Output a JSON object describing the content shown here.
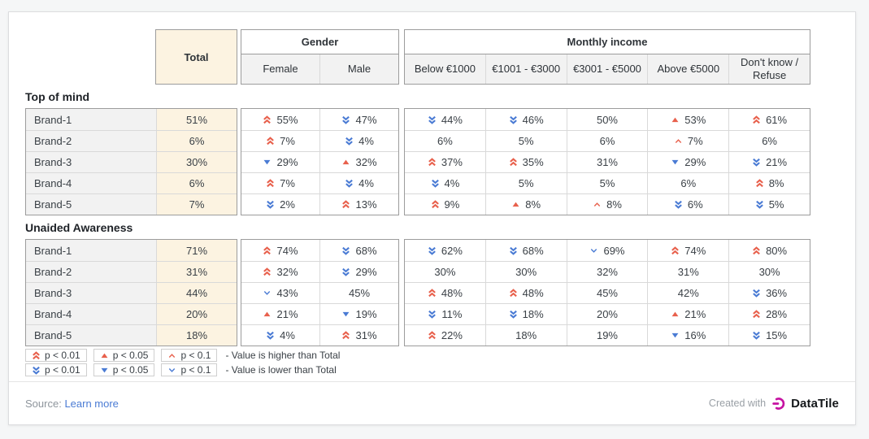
{
  "chart_data": {
    "type": "table",
    "header": {
      "total_label": "Total",
      "groups": [
        {
          "label": "Gender",
          "columns": [
            "Female",
            "Male"
          ]
        },
        {
          "label": "Monthly income",
          "columns": [
            "Below €1000",
            "€1001 - €3000",
            "€3001 - €5000",
            "Above €5000",
            "Don't know / Refuse"
          ]
        }
      ]
    },
    "sections": [
      {
        "title": "Top of mind",
        "rows": [
          {
            "label": "Brand-1",
            "total": "51%",
            "gender": [
              {
                "v": "55%",
                "sig": "up2"
              },
              {
                "v": "47%",
                "sig": "down2"
              }
            ],
            "income": [
              {
                "v": "44%",
                "sig": "down2"
              },
              {
                "v": "46%",
                "sig": "down2"
              },
              {
                "v": "50%",
                "sig": null
              },
              {
                "v": "53%",
                "sig": "up1"
              },
              {
                "v": "61%",
                "sig": "up2"
              }
            ]
          },
          {
            "label": "Brand-2",
            "total": "6%",
            "gender": [
              {
                "v": "7%",
                "sig": "up2"
              },
              {
                "v": "4%",
                "sig": "down2"
              }
            ],
            "income": [
              {
                "v": "6%",
                "sig": null
              },
              {
                "v": "5%",
                "sig": null
              },
              {
                "v": "6%",
                "sig": null
              },
              {
                "v": "7%",
                "sig": "up0"
              },
              {
                "v": "6%",
                "sig": null
              }
            ]
          },
          {
            "label": "Brand-3",
            "total": "30%",
            "gender": [
              {
                "v": "29%",
                "sig": "down1"
              },
              {
                "v": "32%",
                "sig": "up1"
              }
            ],
            "income": [
              {
                "v": "37%",
                "sig": "up2"
              },
              {
                "v": "35%",
                "sig": "up2"
              },
              {
                "v": "31%",
                "sig": null
              },
              {
                "v": "29%",
                "sig": "down1"
              },
              {
                "v": "21%",
                "sig": "down2"
              }
            ]
          },
          {
            "label": "Brand-4",
            "total": "6%",
            "gender": [
              {
                "v": "7%",
                "sig": "up2"
              },
              {
                "v": "4%",
                "sig": "down2"
              }
            ],
            "income": [
              {
                "v": "4%",
                "sig": "down2"
              },
              {
                "v": "5%",
                "sig": null
              },
              {
                "v": "5%",
                "sig": null
              },
              {
                "v": "6%",
                "sig": null
              },
              {
                "v": "8%",
                "sig": "up2"
              }
            ]
          },
          {
            "label": "Brand-5",
            "total": "7%",
            "gender": [
              {
                "v": "2%",
                "sig": "down2"
              },
              {
                "v": "13%",
                "sig": "up2"
              }
            ],
            "income": [
              {
                "v": "9%",
                "sig": "up2"
              },
              {
                "v": "8%",
                "sig": "up1"
              },
              {
                "v": "8%",
                "sig": "up0"
              },
              {
                "v": "6%",
                "sig": "down2"
              },
              {
                "v": "5%",
                "sig": "down2"
              }
            ]
          }
        ]
      },
      {
        "title": "Unaided Awareness",
        "rows": [
          {
            "label": "Brand-1",
            "total": "71%",
            "gender": [
              {
                "v": "74%",
                "sig": "up2"
              },
              {
                "v": "68%",
                "sig": "down2"
              }
            ],
            "income": [
              {
                "v": "62%",
                "sig": "down2"
              },
              {
                "v": "68%",
                "sig": "down2"
              },
              {
                "v": "69%",
                "sig": "down0"
              },
              {
                "v": "74%",
                "sig": "up2"
              },
              {
                "v": "80%",
                "sig": "up2"
              }
            ]
          },
          {
            "label": "Brand-2",
            "total": "31%",
            "gender": [
              {
                "v": "32%",
                "sig": "up2"
              },
              {
                "v": "29%",
                "sig": "down2"
              }
            ],
            "income": [
              {
                "v": "30%",
                "sig": null
              },
              {
                "v": "30%",
                "sig": null
              },
              {
                "v": "32%",
                "sig": null
              },
              {
                "v": "31%",
                "sig": null
              },
              {
                "v": "30%",
                "sig": null
              }
            ]
          },
          {
            "label": "Brand-3",
            "total": "44%",
            "gender": [
              {
                "v": "43%",
                "sig": "down0"
              },
              {
                "v": "45%",
                "sig": null
              }
            ],
            "income": [
              {
                "v": "48%",
                "sig": "up2"
              },
              {
                "v": "48%",
                "sig": "up2"
              },
              {
                "v": "45%",
                "sig": null
              },
              {
                "v": "42%",
                "sig": null
              },
              {
                "v": "36%",
                "sig": "down2"
              }
            ]
          },
          {
            "label": "Brand-4",
            "total": "20%",
            "gender": [
              {
                "v": "21%",
                "sig": "up1"
              },
              {
                "v": "19%",
                "sig": "down1"
              }
            ],
            "income": [
              {
                "v": "11%",
                "sig": "down2"
              },
              {
                "v": "18%",
                "sig": "down2"
              },
              {
                "v": "20%",
                "sig": null
              },
              {
                "v": "21%",
                "sig": "up1"
              },
              {
                "v": "28%",
                "sig": "up2"
              }
            ]
          },
          {
            "label": "Brand-5",
            "total": "18%",
            "gender": [
              {
                "v": "4%",
                "sig": "down2"
              },
              {
                "v": "31%",
                "sig": "up2"
              }
            ],
            "income": [
              {
                "v": "22%",
                "sig": "up2"
              },
              {
                "v": "18%",
                "sig": null
              },
              {
                "v": "19%",
                "sig": null
              },
              {
                "v": "16%",
                "sig": "down1"
              },
              {
                "v": "15%",
                "sig": "down2"
              }
            ]
          }
        ]
      }
    ],
    "legend": {
      "rows": [
        {
          "items": [
            {
              "sig": "up2",
              "label": "p < 0.01"
            },
            {
              "sig": "up1",
              "label": "p < 0.05"
            },
            {
              "sig": "up0",
              "label": "p < 0.1"
            }
          ],
          "note": "- Value is higher than Total"
        },
        {
          "items": [
            {
              "sig": "down2",
              "label": "p < 0.01"
            },
            {
              "sig": "down1",
              "label": "p < 0.05"
            },
            {
              "sig": "down0",
              "label": "p < 0.1"
            }
          ],
          "note": "- Value is lower than Total"
        }
      ]
    }
  },
  "footer": {
    "source_label": "Source:",
    "source_link": "Learn more",
    "created_with": "Created with",
    "brand_name": "DataTile"
  },
  "colors": {
    "higher": "#e8604c",
    "lower": "#4a7bd4",
    "total_bg": "#fcf3e1",
    "header_cell_bg": "#f2f2f2",
    "link": "#4a7bd4",
    "logo": "#c613a2"
  }
}
